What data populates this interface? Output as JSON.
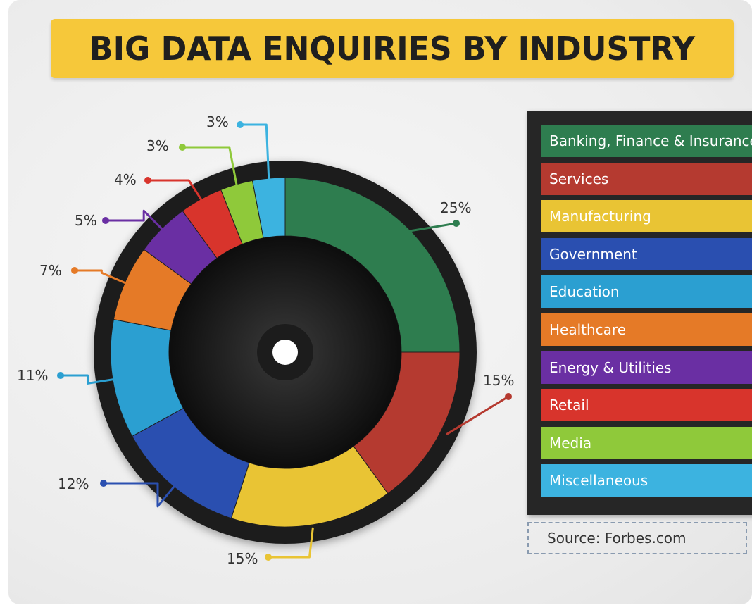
{
  "chart_data": {
    "type": "pie",
    "title": "BIG DATA ENQUIRIES BY INDUSTRY",
    "categories": [
      "Banking, Finance & Insurance",
      "Services",
      "Manufacturing",
      "Government",
      "Education",
      "Healthcare",
      "Energy & Utilities",
      "Retail",
      "Media",
      "Miscellaneous"
    ],
    "values": [
      25,
      15,
      15,
      12,
      11,
      7,
      5,
      4,
      3,
      3
    ],
    "labels": [
      "25%",
      "15%",
      "15%",
      "12%",
      "11%",
      "7%",
      "5%",
      "4%",
      "3%",
      "3%"
    ],
    "colors": [
      "#2e7d4f",
      "#b53a30",
      "#e9c434",
      "#2a4fb0",
      "#2b9fd1",
      "#e57a27",
      "#6a2fa3",
      "#d8342c",
      "#8fc93a",
      "#3cb3e0"
    ],
    "style": "donut",
    "legend_placement": "right",
    "source": "Source: Forbes.com"
  }
}
